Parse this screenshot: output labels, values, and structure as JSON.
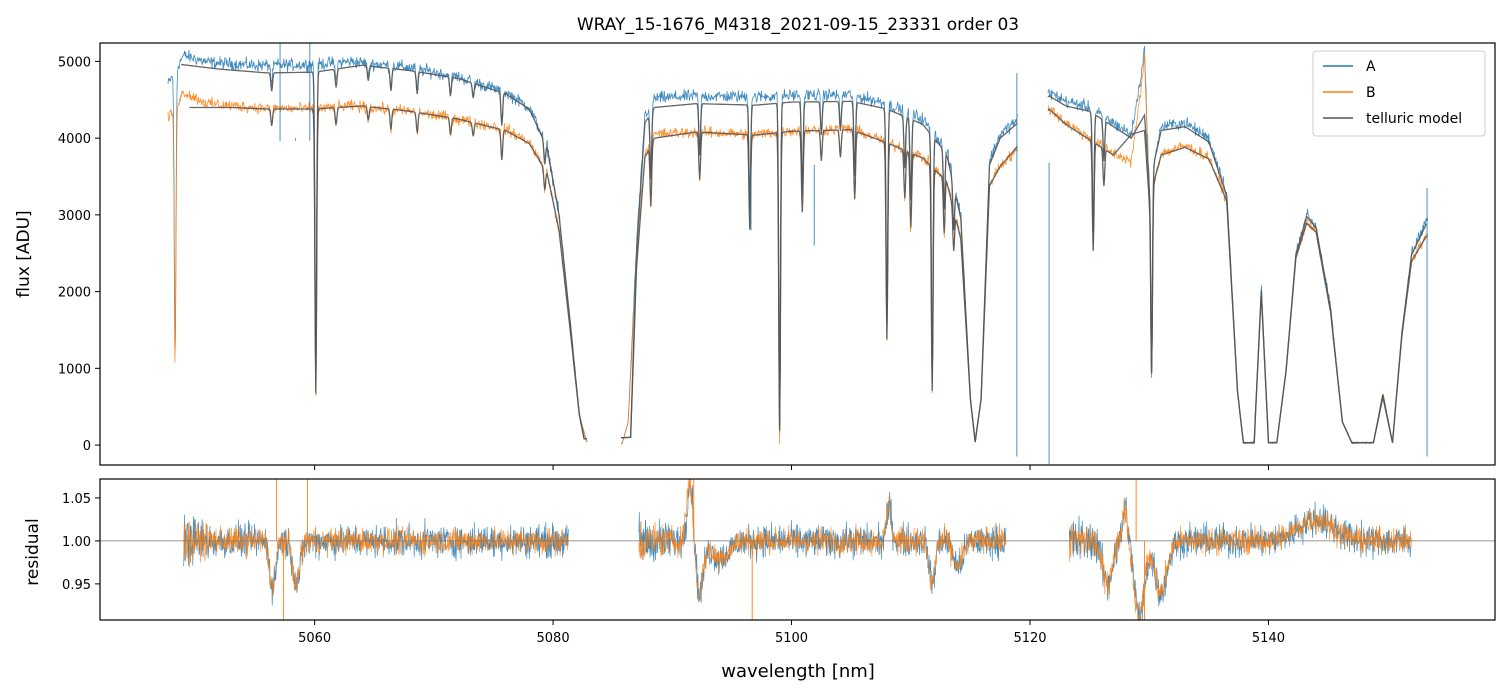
{
  "title": "WRAY_15-1676_M4318_2021-09-15_23331  order 03",
  "colors": {
    "A": "#1f77b4",
    "B": "#ff7f0e",
    "telluric": "#555555",
    "refline": "#777777"
  },
  "chart_data": [
    {
      "type": "line",
      "panel": "spectrum",
      "title": "WRAY_15-1676_M4318_2021-09-15_23331  order 03",
      "ylabel": "flux [ADU]",
      "xlim": [
        5042,
        5159
      ],
      "ylim": [
        -260,
        5240
      ],
      "yticks": [
        0,
        1000,
        2000,
        3000,
        4000,
        5000
      ],
      "ytick_labels": [
        "0",
        "1000",
        "2000",
        "3000",
        "4000",
        "5000"
      ],
      "legend": {
        "placement": "top-right",
        "entries": [
          "A",
          "B",
          "telluric model"
        ]
      },
      "continuum_A": [
        [
          5047.7,
          4700
        ],
        [
          5049,
          5080
        ],
        [
          5051,
          4990
        ],
        [
          5055,
          4950
        ],
        [
          5060,
          4960
        ],
        [
          5063,
          5000
        ],
        [
          5068,
          4920
        ],
        [
          5072,
          4800
        ],
        [
          5076,
          4600
        ],
        [
          5078,
          4400
        ],
        [
          5079.5,
          3900
        ],
        [
          5080.5,
          3000
        ],
        [
          5081.5,
          1500
        ],
        [
          5082.2,
          400
        ],
        [
          5082.8,
          50
        ],
        [
          5083.1,
          20
        ],
        [
          5085.8,
          20
        ],
        [
          5086.3,
          300
        ],
        [
          5087,
          2600
        ],
        [
          5087.7,
          4300
        ],
        [
          5088.5,
          4520
        ],
        [
          5092,
          4550
        ],
        [
          5097,
          4540
        ],
        [
          5100,
          4560
        ],
        [
          5105,
          4570
        ],
        [
          5108,
          4450
        ],
        [
          5111,
          4250
        ],
        [
          5113,
          3850
        ],
        [
          5114.2,
          3000
        ],
        [
          5115,
          600
        ],
        [
          5115.4,
          40
        ],
        [
          5115.9,
          600
        ],
        [
          5116.6,
          3700
        ],
        [
          5117.5,
          4050
        ],
        [
          5119,
          4250
        ],
        [
          5121.6,
          4600
        ],
        [
          5123,
          4480
        ],
        [
          5125,
          4400
        ],
        [
          5127,
          4200
        ],
        [
          5128.5,
          4050
        ],
        [
          5129.2,
          4700
        ],
        [
          5129.6,
          5150
        ],
        [
          5130,
          3400
        ],
        [
          5131,
          4150
        ],
        [
          5133,
          4200
        ],
        [
          5135,
          4000
        ],
        [
          5136.5,
          3300
        ],
        [
          5137.4,
          700
        ],
        [
          5137.9,
          30
        ],
        [
          5138.8,
          30
        ],
        [
          5139.4,
          2050
        ],
        [
          5140,
          30
        ],
        [
          5140.7,
          30
        ],
        [
          5141.5,
          1000
        ],
        [
          5142.3,
          2500
        ],
        [
          5143.2,
          3000
        ],
        [
          5144,
          2850
        ],
        [
          5145.2,
          1800
        ],
        [
          5146.2,
          300
        ],
        [
          5147,
          30
        ],
        [
          5148.8,
          30
        ],
        [
          5149.6,
          650
        ],
        [
          5150.4,
          30
        ],
        [
          5151.2,
          1500
        ],
        [
          5152,
          2500
        ],
        [
          5153.3,
          2950
        ]
      ],
      "continuum_B": [
        [
          5047.7,
          4250
        ],
        [
          5049,
          4600
        ],
        [
          5051,
          4450
        ],
        [
          5055,
          4400
        ],
        [
          5060,
          4380
        ],
        [
          5063,
          4420
        ],
        [
          5068,
          4350
        ],
        [
          5072,
          4250
        ],
        [
          5076,
          4120
        ],
        [
          5078,
          3950
        ],
        [
          5079.5,
          3550
        ],
        [
          5080.5,
          2800
        ],
        [
          5081.5,
          1400
        ],
        [
          5082.2,
          400
        ],
        [
          5082.8,
          50
        ],
        [
          5083.1,
          20
        ],
        [
          5085.8,
          20
        ],
        [
          5086.3,
          300
        ],
        [
          5087,
          2400
        ],
        [
          5087.7,
          3800
        ],
        [
          5088.5,
          4050
        ],
        [
          5092,
          4080
        ],
        [
          5097,
          4050
        ],
        [
          5100,
          4100
        ],
        [
          5105,
          4120
        ],
        [
          5108,
          3950
        ],
        [
          5111,
          3750
        ],
        [
          5113,
          3450
        ],
        [
          5114.2,
          2700
        ],
        [
          5115,
          600
        ],
        [
          5115.4,
          40
        ],
        [
          5115.9,
          600
        ],
        [
          5116.6,
          3400
        ],
        [
          5117.5,
          3650
        ],
        [
          5119,
          3850
        ],
        [
          5121.6,
          4400
        ],
        [
          5123,
          4200
        ],
        [
          5125,
          4000
        ],
        [
          5127,
          3800
        ],
        [
          5128.5,
          3700
        ],
        [
          5129.2,
          4500
        ],
        [
          5129.6,
          5050
        ],
        [
          5130,
          3200
        ],
        [
          5131,
          3800
        ],
        [
          5133,
          3900
        ],
        [
          5135,
          3750
        ],
        [
          5136.5,
          3200
        ],
        [
          5137.4,
          700
        ],
        [
          5137.9,
          30
        ],
        [
          5138.8,
          30
        ],
        [
          5139.4,
          2000
        ],
        [
          5140,
          30
        ],
        [
          5140.7,
          30
        ],
        [
          5141.5,
          1000
        ],
        [
          5142.3,
          2450
        ],
        [
          5143.2,
          2900
        ],
        [
          5144,
          2780
        ],
        [
          5145.2,
          1750
        ],
        [
          5146.2,
          300
        ],
        [
          5147,
          30
        ],
        [
          5148.8,
          30
        ],
        [
          5149.6,
          680
        ],
        [
          5150.4,
          30
        ],
        [
          5151.2,
          1450
        ],
        [
          5152,
          2400
        ],
        [
          5153.3,
          2750
        ]
      ],
      "telluric_A": [
        [
          5048.8,
          4960
        ],
        [
          5052,
          4900
        ],
        [
          5056,
          4850
        ],
        [
          5060,
          4860
        ],
        [
          5064,
          4950
        ],
        [
          5068,
          4880
        ],
        [
          5072,
          4780
        ],
        [
          5076,
          4580
        ],
        [
          5078,
          4380
        ],
        [
          5079.5,
          3880
        ],
        [
          5080.5,
          3000
        ],
        [
          5081.5,
          1500
        ],
        [
          5082.2,
          400
        ],
        [
          5082.6,
          80
        ],
        [
          5086.5,
          100
        ],
        [
          5087,
          2500
        ],
        [
          5087.7,
          4200
        ],
        [
          5088.5,
          4400
        ],
        [
          5092,
          4450
        ],
        [
          5097,
          4430
        ],
        [
          5100,
          4470
        ],
        [
          5105,
          4480
        ],
        [
          5108,
          4380
        ],
        [
          5111,
          4180
        ],
        [
          5113,
          3800
        ],
        [
          5114.2,
          2950
        ],
        [
          5115,
          600
        ],
        [
          5115.4,
          40
        ],
        [
          5115.9,
          600
        ],
        [
          5116.6,
          3650
        ],
        [
          5117.5,
          4000
        ],
        [
          5121.6,
          4550
        ],
        [
          5123,
          4420
        ],
        [
          5125,
          4350
        ],
        [
          5127,
          4150
        ],
        [
          5128.5,
          4000
        ],
        [
          5129.6,
          4300
        ],
        [
          5130,
          3400
        ],
        [
          5131,
          4100
        ],
        [
          5133,
          4150
        ],
        [
          5135,
          3950
        ],
        [
          5136.5,
          3250
        ],
        [
          5137.4,
          700
        ],
        [
          5137.9,
          30
        ],
        [
          5138.8,
          30
        ],
        [
          5139.4,
          2020
        ],
        [
          5140,
          30
        ],
        [
          5140.7,
          30
        ],
        [
          5141.5,
          1000
        ],
        [
          5142.3,
          2480
        ],
        [
          5143.2,
          2980
        ],
        [
          5144,
          2830
        ],
        [
          5145.2,
          1780
        ],
        [
          5146.2,
          300
        ],
        [
          5147,
          30
        ],
        [
          5148.8,
          30
        ],
        [
          5149.6,
          620
        ],
        [
          5150.4,
          30
        ],
        [
          5151.2,
          1480
        ],
        [
          5152,
          2480
        ],
        [
          5153.3,
          2900
        ]
      ],
      "telluric_B": [
        [
          5049.5,
          4400
        ],
        [
          5053,
          4400
        ],
        [
          5056,
          4380
        ],
        [
          5060,
          4380
        ],
        [
          5064,
          4420
        ],
        [
          5068,
          4350
        ],
        [
          5072,
          4250
        ],
        [
          5076,
          4100
        ],
        [
          5078,
          3930
        ],
        [
          5079.5,
          3540
        ],
        [
          5080.5,
          2800
        ],
        [
          5081.5,
          1400
        ],
        [
          5082.2,
          400
        ],
        [
          5082.6,
          80
        ],
        [
          5086.5,
          100
        ],
        [
          5087,
          2300
        ],
        [
          5087.7,
          3750
        ],
        [
          5088.5,
          4000
        ],
        [
          5092,
          4080
        ],
        [
          5097,
          4040
        ],
        [
          5100,
          4090
        ],
        [
          5105,
          4110
        ],
        [
          5108,
          3940
        ],
        [
          5111,
          3740
        ],
        [
          5113,
          3440
        ],
        [
          5114.2,
          2680
        ],
        [
          5115,
          600
        ],
        [
          5115.4,
          40
        ],
        [
          5115.9,
          600
        ],
        [
          5116.6,
          3380
        ],
        [
          5117.5,
          3630
        ],
        [
          5121.6,
          4380
        ],
        [
          5123,
          4180
        ],
        [
          5125,
          3980
        ],
        [
          5127,
          3780
        ],
        [
          5128.5,
          4050
        ],
        [
          5129.6,
          4100
        ],
        [
          5130,
          3200
        ],
        [
          5131,
          3780
        ],
        [
          5133,
          3880
        ],
        [
          5135,
          3730
        ],
        [
          5136.5,
          3180
        ],
        [
          5137.4,
          700
        ],
        [
          5137.9,
          30
        ],
        [
          5138.8,
          30
        ],
        [
          5139.4,
          1980
        ],
        [
          5140,
          30
        ],
        [
          5140.7,
          30
        ],
        [
          5141.5,
          1000
        ],
        [
          5142.3,
          2440
        ],
        [
          5143.2,
          2890
        ],
        [
          5144,
          2770
        ],
        [
          5145.2,
          1740
        ],
        [
          5146.2,
          300
        ],
        [
          5147,
          30
        ],
        [
          5148.8,
          30
        ],
        [
          5149.6,
          660
        ],
        [
          5150.4,
          30
        ],
        [
          5151.2,
          1440
        ],
        [
          5152,
          2390
        ],
        [
          5153.3,
          2740
        ]
      ],
      "absorption_lines": [
        [
          5048.3,
          3700
        ],
        [
          5056.4,
          250
        ],
        [
          5060.1,
          4200
        ],
        [
          5061.8,
          250
        ],
        [
          5064.5,
          200
        ],
        [
          5066.4,
          300
        ],
        [
          5068.6,
          300
        ],
        [
          5071.4,
          250
        ],
        [
          5073.3,
          200
        ],
        [
          5075.7,
          450
        ],
        [
          5079.3,
          300
        ],
        [
          5088.2,
          900
        ],
        [
          5092.3,
          700
        ],
        [
          5096.5,
          1400
        ],
        [
          5099,
          4400
        ],
        [
          5100.9,
          1200
        ],
        [
          5102.5,
          450
        ],
        [
          5104.1,
          400
        ],
        [
          5105.3,
          1000
        ],
        [
          5108,
          2900
        ],
        [
          5109.5,
          700
        ],
        [
          5110,
          1100
        ],
        [
          5111.8,
          3300
        ],
        [
          5112.8,
          800
        ],
        [
          5113.6,
          600
        ],
        [
          5125.3,
          1600
        ],
        [
          5126.2,
          550
        ],
        [
          5130.2,
          2700
        ]
      ],
      "spikes": [
        [
          5057.1,
          5240
        ],
        [
          5058.4,
          4000
        ],
        [
          5059.6,
          5240
        ],
        [
          5096.6,
          2800
        ],
        [
          5101.9,
          2600
        ],
        [
          5118.9,
          -150
        ],
        [
          5118.9,
          4850
        ],
        [
          5121.6,
          -250
        ],
        [
          5153.3,
          3350
        ],
        [
          5153.3,
          -150
        ]
      ]
    },
    {
      "type": "line",
      "panel": "residual",
      "ylabel": "residual",
      "xlabel": "wavelength [nm]",
      "xlim": [
        5042,
        5159
      ],
      "ylim": [
        0.908,
        1.072
      ],
      "xticks": [
        5060,
        5080,
        5100,
        5120,
        5140
      ],
      "xtick_labels": [
        "5060",
        "5080",
        "5100",
        "5120",
        "5140"
      ],
      "yticks": [
        0.95,
        1.0,
        1.05
      ],
      "ytick_labels": [
        "0.95",
        "1.00",
        "1.05"
      ],
      "reference_line": 1.0,
      "segments": [
        [
          5049,
          5081.3
        ],
        [
          5087.2,
          5118
        ],
        [
          5123.3,
          5152
        ]
      ],
      "features": [
        [
          5056.5,
          -0.055,
          0.5
        ],
        [
          5058.5,
          -0.05,
          0.6
        ],
        [
          5091.5,
          0.07,
          0.5
        ],
        [
          5092.3,
          -0.06,
          0.6
        ],
        [
          5094,
          -0.02,
          1.5
        ],
        [
          5108.2,
          0.04,
          0.4
        ],
        [
          5111.8,
          -0.05,
          0.5
        ],
        [
          5114,
          -0.03,
          0.8
        ],
        [
          5126.5,
          -0.05,
          0.8
        ],
        [
          5128,
          0.04,
          0.4
        ],
        [
          5129.2,
          -0.09,
          0.8
        ],
        [
          5131,
          -0.06,
          1
        ],
        [
          5144,
          0.025,
          3
        ]
      ],
      "spikes": [
        [
          5056.8,
          1.072
        ],
        [
          5057.4,
          0.908
        ],
        [
          5059.4,
          1.072
        ],
        [
          5091.8,
          1.072
        ],
        [
          5096.7,
          0.908
        ],
        [
          5128.9,
          1.072
        ],
        [
          5129.6,
          0.908
        ]
      ]
    }
  ]
}
